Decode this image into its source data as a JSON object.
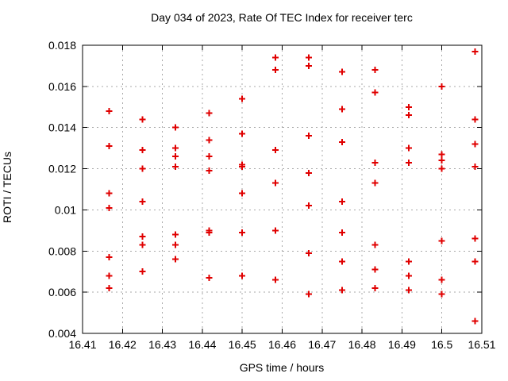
{
  "chart_data": {
    "type": "scatter",
    "title": "Day 034 of 2023, Rate Of TEC Index for receiver terc",
    "xlabel": "GPS time / hours",
    "ylabel": "ROTI / TECUs",
    "xlim": [
      16.41,
      16.51
    ],
    "ylim": [
      0.004,
      0.018
    ],
    "xticks": [
      16.41,
      16.42,
      16.43,
      16.44,
      16.45,
      16.46,
      16.47,
      16.48,
      16.49,
      16.5,
      16.51
    ],
    "xtick_labels": [
      "16.41",
      "16.42",
      "16.43",
      "16.44",
      "16.45",
      "16.46",
      "16.47",
      "16.48",
      "16.49",
      "16.5",
      "16.51"
    ],
    "yticks": [
      0.004,
      0.006,
      0.008,
      0.01,
      0.012,
      0.014,
      0.016,
      0.018
    ],
    "ytick_labels": [
      "0.004",
      "0.006",
      "0.008",
      "0.01",
      "0.012",
      "0.014",
      "0.016",
      "0.018"
    ],
    "grid": true,
    "legend": "none",
    "marker": "plus",
    "colors": {
      "marker": "#e00000",
      "grid": "#a9a9a9",
      "frame": "#000000",
      "background": "#ffffff",
      "text": "#000000"
    },
    "series": [
      {
        "name": "ROTI",
        "points": [
          [
            16.4167,
            0.0148
          ],
          [
            16.4167,
            0.0131
          ],
          [
            16.4167,
            0.0108
          ],
          [
            16.4167,
            0.0101
          ],
          [
            16.4167,
            0.0077
          ],
          [
            16.4167,
            0.0068
          ],
          [
            16.4167,
            0.0062
          ],
          [
            16.425,
            0.0144
          ],
          [
            16.425,
            0.0129
          ],
          [
            16.425,
            0.012
          ],
          [
            16.425,
            0.0104
          ],
          [
            16.425,
            0.0087
          ],
          [
            16.425,
            0.0083
          ],
          [
            16.425,
            0.007
          ],
          [
            16.4333,
            0.014
          ],
          [
            16.4333,
            0.013
          ],
          [
            16.4333,
            0.0126
          ],
          [
            16.4333,
            0.0121
          ],
          [
            16.4333,
            0.0088
          ],
          [
            16.4333,
            0.0083
          ],
          [
            16.4333,
            0.0076
          ],
          [
            16.4417,
            0.0147
          ],
          [
            16.4417,
            0.0134
          ],
          [
            16.4417,
            0.0126
          ],
          [
            16.4417,
            0.0119
          ],
          [
            16.4417,
            0.009
          ],
          [
            16.4417,
            0.0089
          ],
          [
            16.4417,
            0.0067
          ],
          [
            16.45,
            0.0154
          ],
          [
            16.45,
            0.0137
          ],
          [
            16.45,
            0.0122
          ],
          [
            16.45,
            0.0121
          ],
          [
            16.45,
            0.0108
          ],
          [
            16.45,
            0.0089
          ],
          [
            16.45,
            0.0068
          ],
          [
            16.4583,
            0.0174
          ],
          [
            16.4583,
            0.0168
          ],
          [
            16.4583,
            0.0129
          ],
          [
            16.4583,
            0.0113
          ],
          [
            16.4583,
            0.009
          ],
          [
            16.4583,
            0.0066
          ],
          [
            16.4667,
            0.0174
          ],
          [
            16.4667,
            0.017
          ],
          [
            16.4667,
            0.0136
          ],
          [
            16.4667,
            0.0118
          ],
          [
            16.4667,
            0.0102
          ],
          [
            16.4667,
            0.0079
          ],
          [
            16.4667,
            0.0059
          ],
          [
            16.475,
            0.0167
          ],
          [
            16.475,
            0.0149
          ],
          [
            16.475,
            0.0133
          ],
          [
            16.475,
            0.0104
          ],
          [
            16.475,
            0.0089
          ],
          [
            16.475,
            0.0075
          ],
          [
            16.475,
            0.0061
          ],
          [
            16.4833,
            0.0168
          ],
          [
            16.4833,
            0.0157
          ],
          [
            16.4833,
            0.0123
          ],
          [
            16.4833,
            0.0113
          ],
          [
            16.4833,
            0.0083
          ],
          [
            16.4833,
            0.0071
          ],
          [
            16.4833,
            0.0062
          ],
          [
            16.4917,
            0.015
          ],
          [
            16.4917,
            0.0146
          ],
          [
            16.4917,
            0.013
          ],
          [
            16.4917,
            0.0123
          ],
          [
            16.4917,
            0.0075
          ],
          [
            16.4917,
            0.0068
          ],
          [
            16.4917,
            0.0061
          ],
          [
            16.5,
            0.016
          ],
          [
            16.5,
            0.0127
          ],
          [
            16.5,
            0.0124
          ],
          [
            16.5,
            0.012
          ],
          [
            16.5,
            0.0085
          ],
          [
            16.5,
            0.0066
          ],
          [
            16.5,
            0.0059
          ],
          [
            16.5083,
            0.0177
          ],
          [
            16.5083,
            0.0144
          ],
          [
            16.5083,
            0.0132
          ],
          [
            16.5083,
            0.0121
          ],
          [
            16.5083,
            0.0086
          ],
          [
            16.5083,
            0.0075
          ],
          [
            16.5083,
            0.0046
          ]
        ]
      }
    ]
  }
}
